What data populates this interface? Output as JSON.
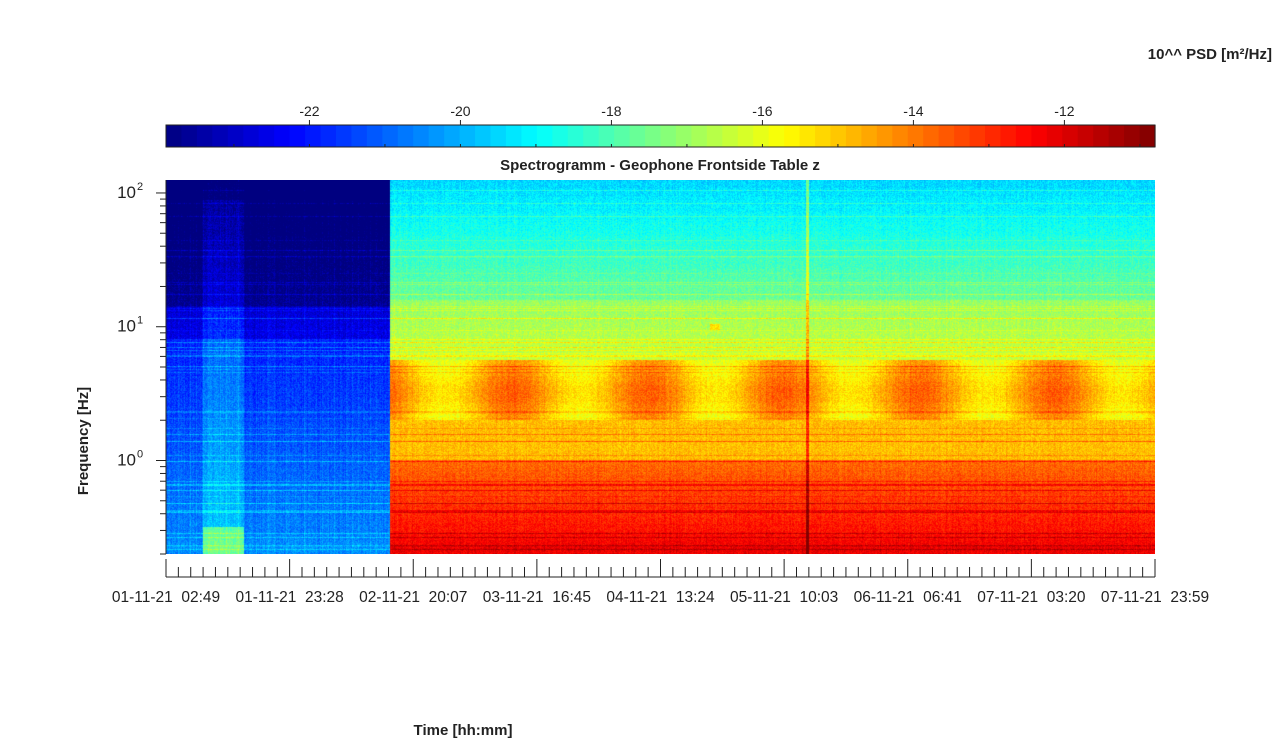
{
  "chart_data": {
    "type": "heatmap",
    "title": "Spectrogramm - Geophone Frontside Table z",
    "xlabel": "Time [hh:mm]",
    "ylabel": "Frequency [Hz]",
    "colorbar_label": "10^^ PSD [m²/Hz]",
    "colormap": "jet",
    "clim": [
      -23.9,
      -10.8
    ],
    "colorbar_ticks": [
      -22,
      -20,
      -18,
      -16,
      -14,
      -12
    ],
    "colorbar_tick_labels": [
      "-22",
      "-20",
      "-18",
      "-16",
      "-14",
      "-12"
    ],
    "x_tick_labels": [
      "01-11-21  02:49",
      "01-11-21  23:28",
      "02-11-21  20:07",
      "03-11-21  16:45",
      "04-11-21  13:24",
      "05-11-21  10:03",
      "06-11-21  06:41",
      "07-11-21  03:20",
      "07-11-21  23:59"
    ],
    "y_scale": "log",
    "ylim": [
      0.2,
      125
    ],
    "y_ticks": [
      1,
      10,
      100
    ],
    "y_tick_labels": [
      "10",
      "10",
      "10"
    ],
    "y_tick_exponents": [
      "0",
      "1",
      "2"
    ],
    "grid": false,
    "note_regions": [
      {
        "x_start_frac": 0.0,
        "x_end_frac": 0.226,
        "level": "low (quiet)"
      },
      {
        "x_start_frac": 0.226,
        "x_end_frac": 1.0,
        "level": "high (active)"
      }
    ]
  }
}
